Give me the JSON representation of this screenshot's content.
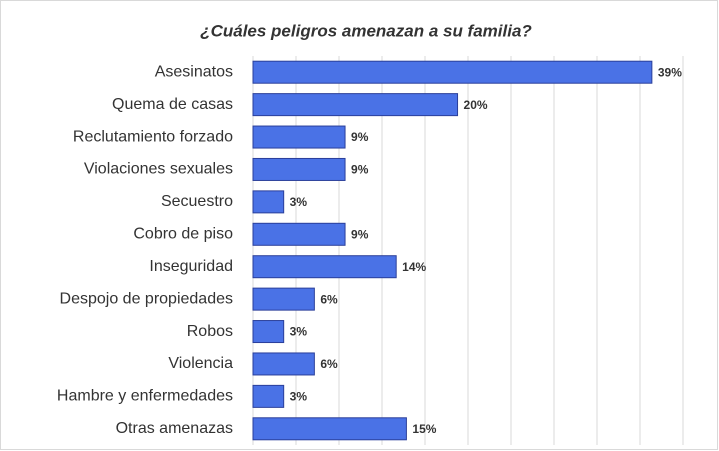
{
  "chart_data": {
    "type": "bar",
    "orientation": "horizontal",
    "title": "¿Cuáles peligros amenazan a su familia?",
    "categories": [
      "Asesinatos",
      "Quema de casas",
      "Reclutamiento forzado",
      "Violaciones sexuales",
      "Secuestro",
      "Cobro de piso",
      "Inseguridad",
      "Despojo de propiedades",
      "Robos",
      "Violencia",
      "Hambre y enfermedades",
      "Otras amenazas"
    ],
    "values": [
      39,
      20,
      9,
      9,
      3,
      9,
      14,
      6,
      3,
      6,
      3,
      15
    ],
    "value_labels": [
      "39%",
      "20%",
      "9%",
      "9%",
      "3%",
      "9%",
      "14%",
      "6%",
      "3%",
      "6%",
      "3%",
      "15%"
    ],
    "color": "#4a72e6",
    "xlim": [
      0,
      44
    ],
    "grid": true
  }
}
